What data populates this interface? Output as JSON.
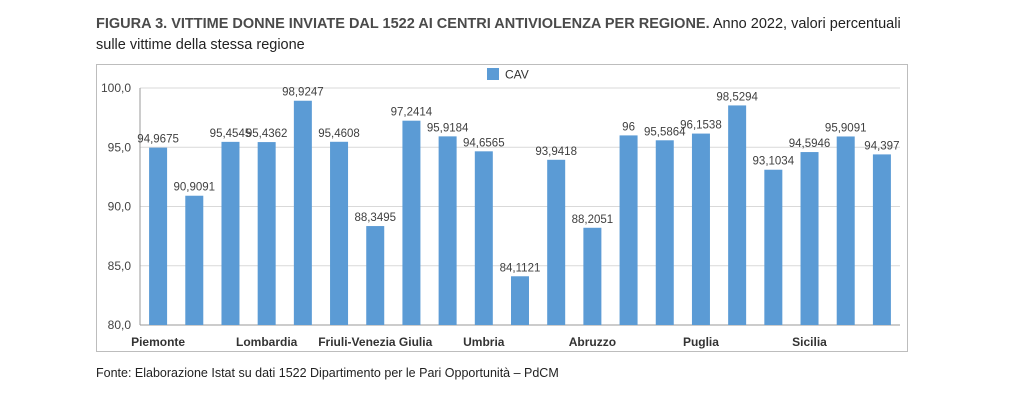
{
  "figure": {
    "title_bold": "FIGURA 3. VITTIME DONNE INVIATE DAL 1522 AI CENTRI ANTIVIOLENZA PER REGIONE.",
    "title_rest": " Anno 2022, valori percentuali sulle vittime della stessa regione",
    "source": "Fonte: Elaborazione Istat su dati 1522 Dipartimento per le Pari Opportunità – PdCM"
  },
  "chart_data": {
    "type": "bar",
    "series_name": "CAV",
    "color": "#5b9bd5",
    "ylim": [
      80,
      100
    ],
    "yticks": [
      "80,0",
      "85,0",
      "90,0",
      "95,0",
      "100,0"
    ],
    "grid": true,
    "legend": "top-center",
    "values": [
      94.9675,
      90.9091,
      95.4545,
      95.4362,
      98.9247,
      95.4608,
      88.3495,
      97.2414,
      95.9184,
      94.6565,
      84.1121,
      93.9418,
      88.2051,
      96,
      95.5864,
      96.1538,
      98.5294,
      93.1034,
      94.5946,
      95.9091,
      94.397
    ],
    "labels": [
      "94,9675",
      "90,9091",
      "95,4545",
      "95,4362",
      "98,9247",
      "95,4608",
      "88,3495",
      "97,2414",
      "95,9184",
      "94,6565",
      "84,1121",
      "93,9418",
      "88,2051",
      "96",
      "95,5864",
      "96,1538",
      "98,5294",
      "93,1034",
      "94,5946",
      "95,9091",
      "94,397"
    ],
    "category_labels": [
      {
        "text": "Piemonte",
        "bar": 0
      },
      {
        "text": "Lombardia",
        "bar": 3
      },
      {
        "text": "Friuli-Venezia Giulia",
        "bar": 6
      },
      {
        "text": "Umbria",
        "bar": 9
      },
      {
        "text": "Abruzzo",
        "bar": 12
      },
      {
        "text": "Puglia",
        "bar": 15
      },
      {
        "text": "Sicilia",
        "bar": 18
      }
    ]
  }
}
